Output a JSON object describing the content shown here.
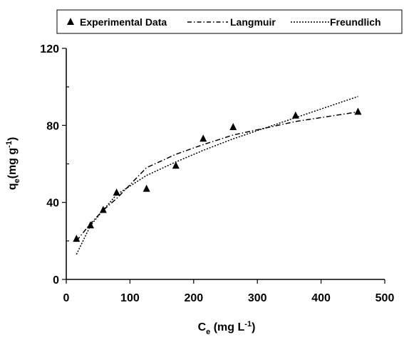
{
  "chart_data": {
    "type": "scatter",
    "xlabel": {
      "main": "C",
      "sub": "e",
      "rest": " (mg L",
      "sup": "-1",
      "close": ")"
    },
    "ylabel": {
      "main": "q",
      "sub": "e",
      "rest": "(mg g",
      "sup": "-1",
      "close": ")"
    },
    "xlim": [
      0,
      500
    ],
    "ylim": [
      0,
      120
    ],
    "xticks": [
      "0",
      "100",
      "200",
      "300",
      "400",
      "500"
    ],
    "yticks": [
      "0",
      "40",
      "80",
      "120"
    ],
    "xtick_values": [
      0,
      100,
      200,
      300,
      400,
      500
    ],
    "ytick_values": [
      0,
      40,
      80,
      120
    ],
    "grid": false,
    "legend_position": "top",
    "legend": [
      "Experimental Data",
      "Langmuir",
      "Freundlich"
    ],
    "series": [
      {
        "name": "Experimental Data",
        "style": "triangle-marker",
        "x": [
          16,
          38,
          58,
          79,
          126,
          172,
          215,
          262,
          360,
          458
        ],
        "y": [
          21,
          28,
          36,
          45,
          47,
          59,
          73,
          79,
          85,
          87
        ]
      },
      {
        "name": "Langmuir",
        "style": "dash-dot",
        "x": [
          16,
          38,
          58,
          79,
          126,
          172,
          215,
          262,
          360,
          458
        ],
        "y": [
          20,
          29,
          36,
          42,
          58,
          65,
          70,
          75,
          82,
          87
        ]
      },
      {
        "name": "Freundlich",
        "style": "dotted",
        "x": [
          16,
          38,
          58,
          79,
          126,
          172,
          215,
          262,
          360,
          458
        ],
        "y": [
          13,
          28,
          36,
          44,
          54,
          61,
          67,
          73,
          84,
          95
        ]
      }
    ],
    "colors": {
      "marker": "#000000",
      "line": "#000000"
    }
  }
}
